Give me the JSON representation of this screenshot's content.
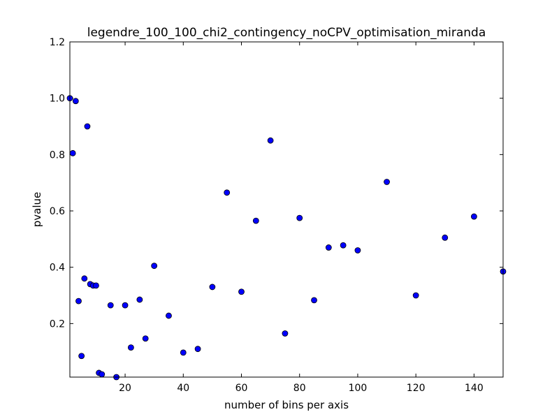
{
  "chart_data": {
    "type": "scatter",
    "title": "legendre_100_100_chi2_contingency_noCPV_optimisation_miranda",
    "xlabel": "number of bins per axis",
    "ylabel": "pvalue",
    "xlim": [
      1,
      150
    ],
    "ylim": [
      0.01,
      1.2
    ],
    "xticks": [
      20,
      40,
      60,
      80,
      100,
      120,
      140
    ],
    "yticks": [
      0.2,
      0.4,
      0.6,
      0.8,
      1.0,
      1.2
    ],
    "ytick_labels": [
      "0.2",
      "0.4",
      "0.6",
      "0.8",
      "1.0",
      "1.2"
    ],
    "grid": false,
    "marker_color": "#0000ff",
    "marker_edge_color": "#000000",
    "series": [
      {
        "x": [
          1,
          2,
          3,
          4,
          5,
          6,
          7,
          8,
          9,
          10,
          11,
          12,
          15,
          17,
          20,
          22,
          25,
          27,
          30,
          35,
          40,
          45,
          50,
          55,
          60,
          65,
          70,
          75,
          80,
          85,
          90,
          95,
          100,
          110,
          120,
          130,
          140,
          150
        ],
        "y": [
          1.0,
          0.805,
          0.99,
          0.28,
          0.085,
          0.36,
          0.9,
          0.34,
          0.335,
          0.335,
          0.025,
          0.02,
          0.265,
          0.01,
          0.265,
          0.115,
          0.285,
          0.147,
          0.405,
          0.228,
          0.097,
          0.11,
          0.33,
          0.665,
          0.313,
          0.565,
          0.85,
          0.165,
          0.575,
          0.283,
          0.47,
          0.478,
          0.46,
          0.703,
          0.3,
          0.505,
          0.58,
          0.385
        ]
      }
    ]
  }
}
